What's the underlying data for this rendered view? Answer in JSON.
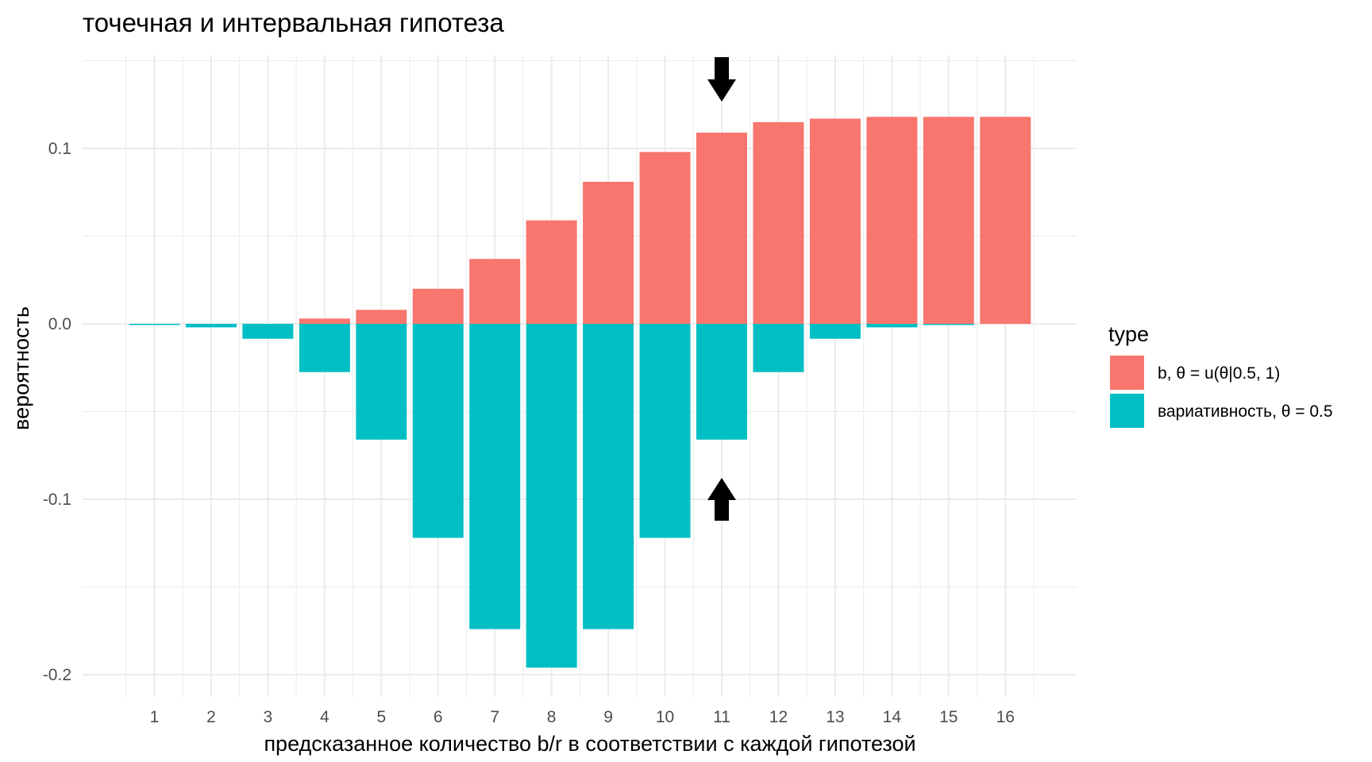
{
  "chart_data": {
    "type": "bar",
    "title": "точечная и интервальная гипотеза",
    "xlabel": "предсказанное количество b/r в соответствии с каждой гипотезой",
    "ylabel": "вероятность",
    "categories": [
      "1",
      "2",
      "3",
      "4",
      "5",
      "6",
      "7",
      "8",
      "9",
      "10",
      "11",
      "12",
      "13",
      "14",
      "15",
      "16"
    ],
    "ylim": [
      -0.21,
      0.155
    ],
    "yticks": [
      -0.2,
      -0.1,
      0.0,
      0.1
    ],
    "ytick_labels": [
      "-0.2",
      "-0.1",
      "0.0",
      "0.1"
    ],
    "grid": true,
    "legend": {
      "title": "type",
      "position": "right"
    },
    "series": [
      {
        "name": "b, θ = u(θ|0.5, 1)",
        "color": "#F8766D",
        "values": [
          0.0,
          0.0,
          0.0,
          0.003,
          0.008,
          0.02,
          0.037,
          0.059,
          0.081,
          0.098,
          0.109,
          0.115,
          0.117,
          0.118,
          0.118,
          0.118
        ]
      },
      {
        "name": "вариативность, θ = 0.5",
        "color": "#00BFC4",
        "values": [
          -0.0005,
          -0.002,
          -0.0085,
          -0.0275,
          -0.066,
          -0.122,
          -0.174,
          -0.196,
          -0.174,
          -0.122,
          -0.066,
          -0.0275,
          -0.0085,
          -0.002,
          -0.0005,
          0.0
        ]
      }
    ],
    "annotations": [
      {
        "type": "arrow",
        "direction": "down",
        "category": "11",
        "icon": "arrow-down-icon"
      },
      {
        "type": "arrow",
        "direction": "up",
        "category": "11",
        "icon": "arrow-up-icon"
      }
    ]
  }
}
